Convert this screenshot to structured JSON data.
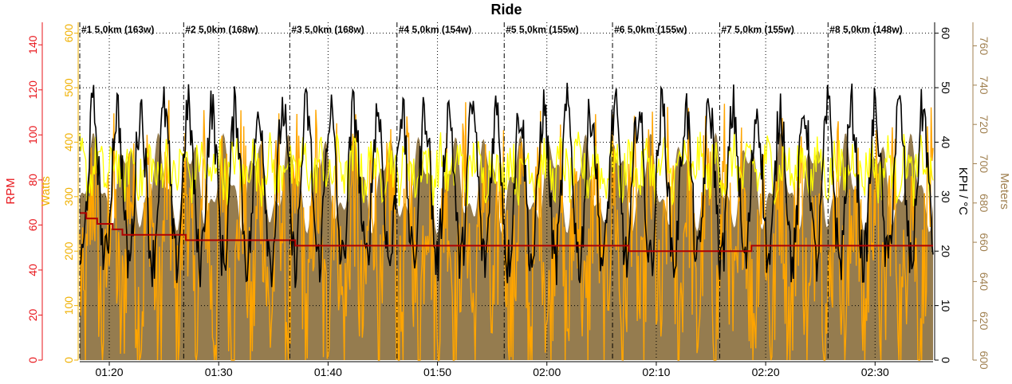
{
  "colors": {
    "rpm": "#e8141a",
    "watts": "#f0b000",
    "power_fill": "#ffa500",
    "speed": "#000000",
    "temp": "#b00000",
    "altitude": "#8a6e3c",
    "altitude_axis": "#a08050",
    "cadence": "#ffff00",
    "grid": "#000000"
  },
  "chart_data": {
    "type": "line",
    "title": "Ride",
    "axes": {
      "rpm": {
        "label": "RPM",
        "ticks": [
          "0",
          "20",
          "40",
          "60",
          "80",
          "100",
          "120",
          "140"
        ],
        "range": [
          0,
          150
        ]
      },
      "watts": {
        "label": "Watts",
        "ticks": [
          "0",
          "100",
          "200",
          "300",
          "400",
          "500",
          "600"
        ],
        "range": [
          0,
          620
        ]
      },
      "speed": {
        "label": "KPH / °C",
        "ticks": [
          "0",
          "10",
          "20",
          "30",
          "40",
          "50",
          "60"
        ],
        "range": [
          0,
          62
        ]
      },
      "altitude": {
        "label": "Meters",
        "ticks": [
          "600",
          "620",
          "640",
          "660",
          "680",
          "700",
          "720",
          "740",
          "760"
        ],
        "range": [
          600,
          772
        ]
      },
      "time": {
        "ticks": [
          "01:20",
          "01:30",
          "01:40",
          "01:50",
          "02:00",
          "02:10",
          "02:20",
          "02:30"
        ],
        "range_min": [
          77.3,
          155.3
        ]
      }
    },
    "laps": [
      {
        "label": "#1 5,0km  (163w)",
        "start": 77.3
      },
      {
        "label": "#2 5,0km  (168w)",
        "start": 86.8
      },
      {
        "label": "#3 5,0km  (168w)",
        "start": 96.5
      },
      {
        "label": "#4 5,0km  (154w)",
        "start": 106.3
      },
      {
        "label": "#5 5,0km  (155w)",
        "start": 116.1
      },
      {
        "label": "#6 5,0km  (155w)",
        "start": 126.0
      },
      {
        "label": "#7 5,0km  (155w)",
        "start": 135.8
      },
      {
        "label": "#8 5,0km  (148w)",
        "start": 145.7
      }
    ],
    "series": [
      {
        "name": "Temperature",
        "axis": "speed",
        "x": [
          77.3,
          77.9,
          78.9,
          80.3,
          81.2,
          83.0,
          87.0,
          92.0,
          97.0,
          117.0,
          127.5,
          133.3,
          135.9,
          138.7,
          155.3
        ],
        "values": [
          27,
          26,
          25,
          24,
          23,
          23,
          22,
          22,
          21,
          21,
          20,
          20,
          20,
          21,
          21
        ]
      }
    ],
    "grid": true
  }
}
